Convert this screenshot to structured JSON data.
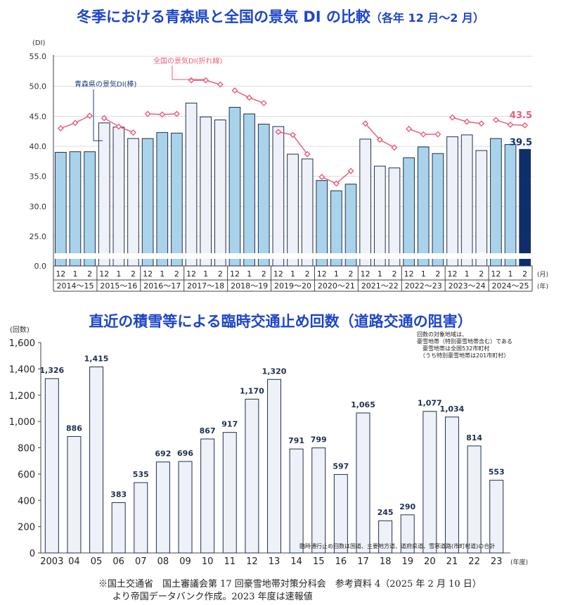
{
  "chart_data": [
    {
      "type": "bar",
      "title": "冬季における青森県と全国の景気 DI の比較",
      "subtitle": "（各年 12 月～2 月）",
      "ylabel": "(DI)",
      "xlabel_month": "(月)",
      "xlabel_year": "(年)",
      "ylim": [
        0,
        55
      ],
      "yticks": [
        "0.0",
        "25.0",
        "30.0",
        "35.0",
        "40.0",
        "45.0",
        "50.0",
        "55.0"
      ],
      "months": [
        "12",
        "1",
        "2",
        "12",
        "1",
        "2",
        "12",
        "1",
        "2",
        "12",
        "1",
        "2",
        "12",
        "1",
        "2",
        "12",
        "1",
        "2",
        "12",
        "1",
        "2",
        "12",
        "1",
        "2",
        "12",
        "1",
        "2",
        "12",
        "1",
        "2",
        "12",
        "1",
        "2"
      ],
      "seasons": [
        "2014～15",
        "2015～16",
        "2016～17",
        "2017～18",
        "2018～19",
        "2019～20",
        "2020～21",
        "2021～22",
        "2022～23",
        "2023～24",
        "2024～25"
      ],
      "series": [
        {
          "name": "青森県の景気DI(棒)",
          "kind": "bar",
          "values": [
            39.0,
            39.1,
            39.1,
            43.9,
            43.2,
            41.3,
            41.3,
            42.3,
            42.2,
            47.2,
            44.9,
            44.4,
            46.5,
            45.4,
            43.7,
            43.3,
            38.7,
            37.9,
            34.3,
            32.6,
            33.7,
            41.2,
            36.7,
            36.4,
            38.1,
            39.9,
            38.8,
            41.6,
            41.9,
            39.3,
            41.3,
            40.3,
            39.5
          ],
          "color_dark": "#a9d3ea",
          "color_light": "#eef2f8",
          "color_last": "#0e2f6b"
        },
        {
          "name": "全国の景気DI(折れ線)",
          "kind": "line",
          "values": [
            43.0,
            43.9,
            45.1,
            44.7,
            43.3,
            42.3,
            45.4,
            45.3,
            45.4,
            51.0,
            51.0,
            50.3,
            49.3,
            48.1,
            47.2,
            42.4,
            41.9,
            38.7,
            34.9,
            33.8,
            35.9,
            43.8,
            41.1,
            39.8,
            42.9,
            42.0,
            42.0,
            44.8,
            44.1,
            43.8,
            44.4,
            43.6,
            43.5
          ],
          "color": "#e85f79"
        }
      ],
      "annotations": {
        "last_national": "43.5",
        "last_aomori": "39.5"
      },
      "legend": {
        "aomori": "青森県の景気DI(棒)",
        "national": "全国の景気DI(折れ線)"
      }
    },
    {
      "type": "bar",
      "title": "直近の積雪等による臨時交通止め回数（道路交通の阻害）",
      "ylabel": "(回数)",
      "xlabel": "(年度)",
      "ylim": [
        0,
        1600
      ],
      "yticks": [
        "0",
        "200",
        "400",
        "600",
        "800",
        "1,000",
        "1,200",
        "1,400",
        "1,600"
      ],
      "categories": [
        "2003",
        "04",
        "05",
        "06",
        "07",
        "08",
        "09",
        "10",
        "11",
        "12",
        "13",
        "14",
        "15",
        "16",
        "17",
        "18",
        "19",
        "20",
        "21",
        "22",
        "23"
      ],
      "values": [
        1326,
        886,
        1415,
        383,
        535,
        692,
        696,
        867,
        917,
        1170,
        1320,
        791,
        799,
        597,
        1065,
        245,
        290,
        1077,
        1034,
        814,
        553
      ],
      "value_labels": [
        "1,326",
        "886",
        "1,415",
        "383",
        "535",
        "692",
        "696",
        "867",
        "917",
        "1,170",
        "1,320",
        "791",
        "799",
        "597",
        "1,065",
        "245",
        "290",
        "1,077",
        "1,034",
        "814",
        "553"
      ],
      "bar_color": "#eef1f8",
      "notes": [
        "回数の対象地域は、",
        "豪雪地帯（特別豪雪地帯含む）である",
        "　豪雪地帯は全国532市町村",
        "　（うち特別豪雪地帯は201市町村）"
      ],
      "subnote": "臨時通行止め回数は国道、主要地方道、道府県道、雪寒道路(市町村道)の合計"
    }
  ],
  "footnote": [
    "※国土交通省　国土審議会第 17 回豪雪地帯対策分科会　参考資料 4（2025 年 2 月 10 日）",
    "より帝国データバンク作成。2023 年度は速報値"
  ]
}
